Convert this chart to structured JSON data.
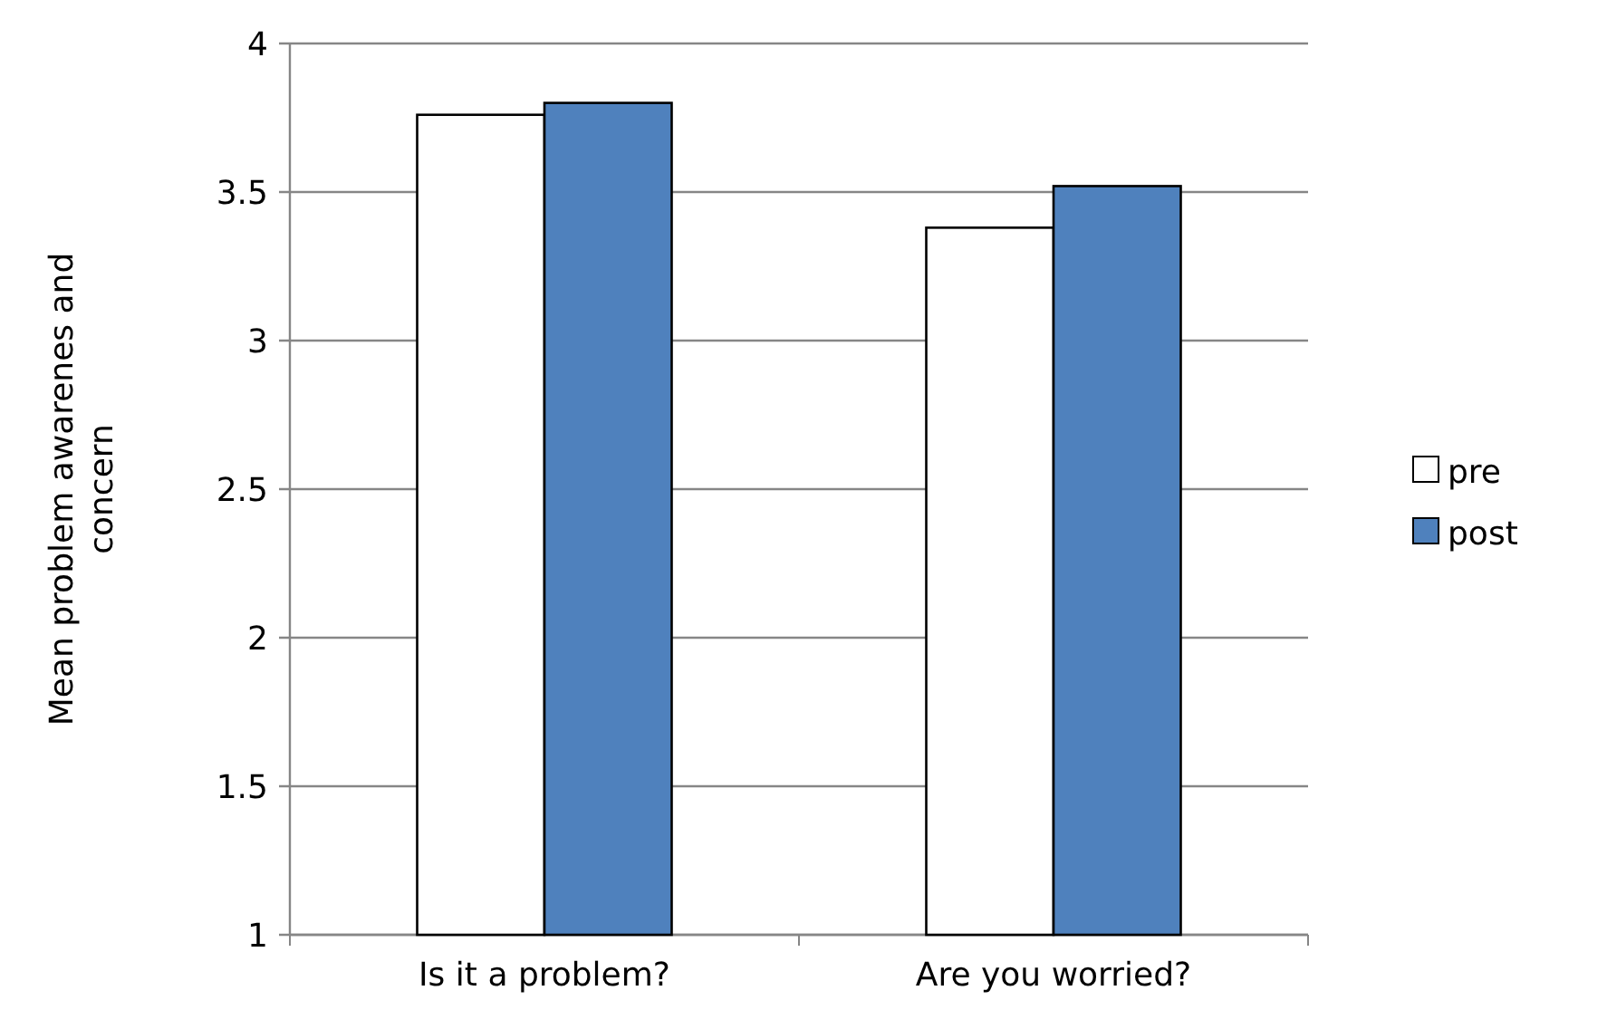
{
  "chart_data": {
    "type": "bar",
    "ylabel": "Mean problem awarenes and concern",
    "categories": [
      "Is it a problem?",
      "Are you worried?"
    ],
    "series": [
      {
        "name": "pre",
        "color": "#ffffff",
        "values": [
          3.76,
          3.38
        ]
      },
      {
        "name": "post",
        "color": "#4f81bd",
        "values": [
          3.8,
          3.52
        ]
      }
    ],
    "ylim": [
      1,
      4
    ],
    "yticks": [
      1,
      1.5,
      2,
      2.5,
      3,
      3.5,
      4
    ],
    "grid": "y",
    "legend": "right"
  }
}
